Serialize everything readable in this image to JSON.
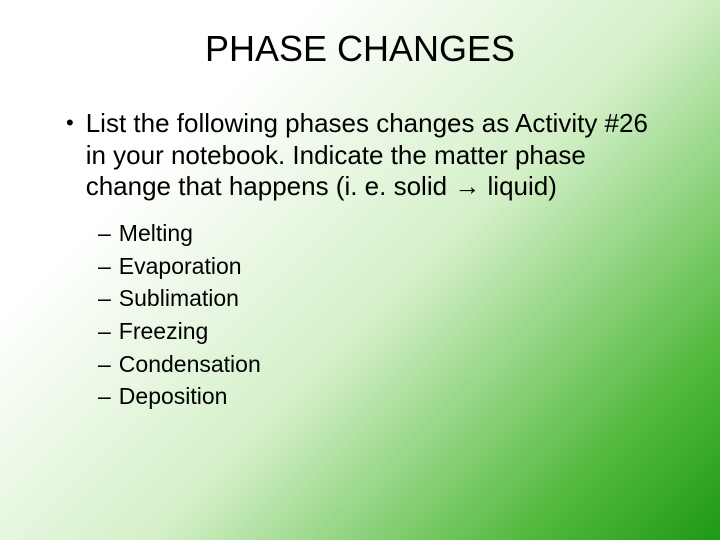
{
  "background": {
    "gradient_stops": [
      "#ffffff",
      "#ffffff",
      "#d4f0c8",
      "#4fb83a",
      "#1f9818"
    ],
    "gradient_angle_deg": 135
  },
  "title": {
    "text": "PHASE CHANGES",
    "fontsize_pt": 36,
    "color": "#000000"
  },
  "main_bullet": {
    "marker": "•",
    "text": "List the following phases changes as Activity #26 in your notebook.  Indicate the matter phase change that happens (i. e. solid → liquid)",
    "fontsize_pt": 26,
    "color": "#000000"
  },
  "sub_bullets": {
    "marker": "–",
    "fontsize_pt": 23,
    "color": "#000000",
    "items": [
      {
        "label": "Melting"
      },
      {
        "label": "Evaporation"
      },
      {
        "label": "Sublimation"
      },
      {
        "label": "Freezing"
      },
      {
        "label": "Condensation"
      },
      {
        "label": "Deposition"
      }
    ]
  }
}
